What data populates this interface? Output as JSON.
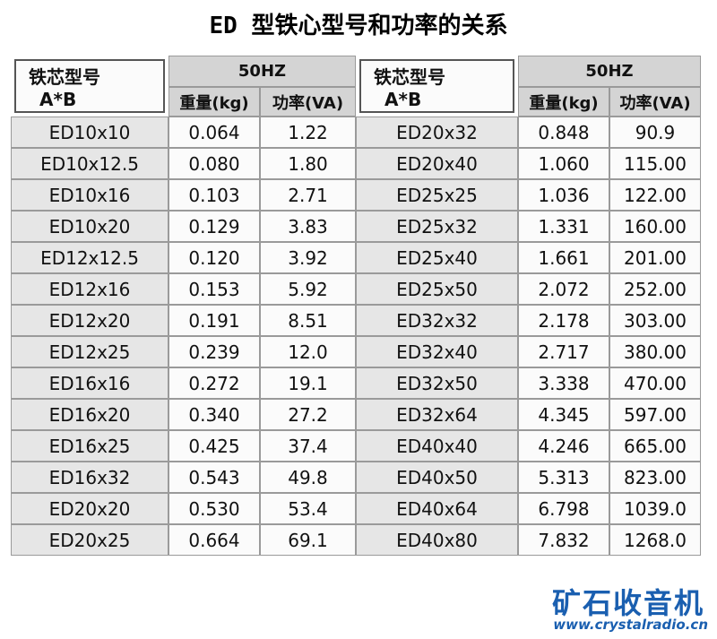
{
  "title": "ED 型铁心型号和功率的关系",
  "header": {
    "groups": [
      {
        "model": "铁芯型号",
        "dims": "A*B",
        "freq": "50HZ",
        "weight": "重量(kg)",
        "power": "功率(VA)"
      },
      {
        "model": "铁芯型号",
        "dims": "A*B",
        "freq": "50HZ",
        "weight": "重量(kg)",
        "power": "功率(VA)"
      }
    ]
  },
  "table": {
    "rows": [
      [
        "ED10x10",
        "0.064",
        "1.22",
        "ED20x32",
        "0.848",
        "90.9"
      ],
      [
        "ED10x12.5",
        "0.080",
        "1.80",
        "ED20x40",
        "1.060",
        "115.00"
      ],
      [
        "ED10x16",
        "0.103",
        "2.71",
        "ED25x25",
        "1.036",
        "122.00"
      ],
      [
        "ED10x20",
        "0.129",
        "3.83",
        "ED25x32",
        "1.331",
        "160.00"
      ],
      [
        "ED12x12.5",
        "0.120",
        "3.92",
        "ED25x40",
        "1.661",
        "201.00"
      ],
      [
        "ED12x16",
        "0.153",
        "5.92",
        "ED25x50",
        "2.072",
        "252.00"
      ],
      [
        "ED12x20",
        "0.191",
        "8.51",
        "ED32x32",
        "2.178",
        "303.00"
      ],
      [
        "ED12x25",
        "0.239",
        "12.0",
        "ED32x40",
        "2.717",
        "380.00"
      ],
      [
        "ED16x16",
        "0.272",
        "19.1",
        "ED32x50",
        "3.338",
        "470.00"
      ],
      [
        "ED16x20",
        "0.340",
        "27.2",
        "ED32x64",
        "4.345",
        "597.00"
      ],
      [
        "ED16x25",
        "0.425",
        "37.4",
        "ED40x40",
        "4.246",
        "665.00"
      ],
      [
        "ED16x32",
        "0.543",
        "49.8",
        "ED40x50",
        "5.313",
        "823.00"
      ],
      [
        "ED20x20",
        "0.530",
        "53.4",
        "ED40x64",
        "6.798",
        "1039.0"
      ],
      [
        "ED20x25",
        "0.664",
        "69.1",
        "ED40x80",
        "7.832",
        "1268.0"
      ]
    ]
  },
  "watermark": {
    "brand": "矿石收音机",
    "url": "www.crystalradio.cn"
  }
}
